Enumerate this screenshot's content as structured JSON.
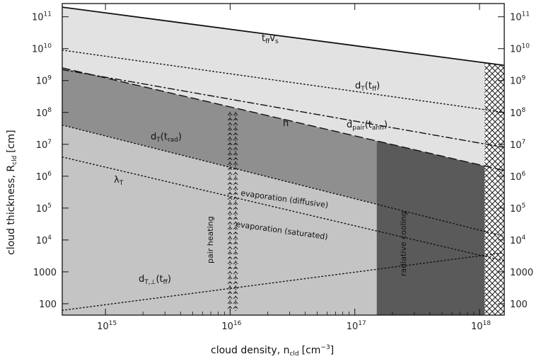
{
  "chart_data": {
    "type": "area",
    "xlabel": "cloud density, n",
    "xlabel_sub": "cld",
    "xlabel_unit": "[cm",
    "xlabel_unit_sup": "−3",
    "xlabel_unit_close": "]",
    "ylabel": "cloud thickness, R",
    "ylabel_sub": "cld",
    "ylabel_unit": "[cm]",
    "x_scale": "log",
    "y_scale": "log",
    "xlim": [
      450000000000000.0,
      1.58e+18
    ],
    "ylim": [
      44,
      260000000000.0
    ],
    "x_ticks": [
      {
        "value": 1000000000000000.0,
        "mant": "10",
        "exp": "15"
      },
      {
        "value": 1e+16,
        "mant": "10",
        "exp": "16"
      },
      {
        "value": 1e+17,
        "mant": "10",
        "exp": "17"
      },
      {
        "value": 1e+18,
        "mant": "10",
        "exp": "18"
      }
    ],
    "y_ticks": [
      {
        "value": 100,
        "mant": "100",
        "exp": ""
      },
      {
        "value": 1000,
        "mant": "1000",
        "exp": ""
      },
      {
        "value": 10000.0,
        "mant": "10",
        "exp": "4"
      },
      {
        "value": 100000.0,
        "mant": "10",
        "exp": "5"
      },
      {
        "value": 1000000.0,
        "mant": "10",
        "exp": "6"
      },
      {
        "value": 10000000.0,
        "mant": "10",
        "exp": "7"
      },
      {
        "value": 100000000.0,
        "mant": "10",
        "exp": "8"
      },
      {
        "value": 1000000000.0,
        "mant": "10",
        "exp": "9"
      },
      {
        "value": 10000000000.0,
        "mant": "10",
        "exp": "10"
      },
      {
        "value": 100000000000.0,
        "mant": "10",
        "exp": "11"
      }
    ],
    "lines": [
      {
        "name": "t_ff v_s",
        "style": "solid",
        "x": [
          450000000000000.0,
          1.58e+18
        ],
        "y": [
          200000000000.0,
          3000000000.0
        ]
      },
      {
        "name": "d_T(t_ff)",
        "style": "dotted",
        "x": [
          450000000000000.0,
          1.58e+18
        ],
        "y": [
          9000000000.0,
          100000000.0
        ]
      },
      {
        "name": "d_pair(t_ann)",
        "style": "dashdot",
        "x": [
          450000000000000.0,
          1.58e+18
        ],
        "y": [
          2200000000.0,
          8000000.0
        ]
      },
      {
        "name": "h",
        "style": "dashed",
        "x": [
          450000000000000.0,
          1.58e+18
        ],
        "y": [
          2500000000.0,
          1500000.0
        ]
      },
      {
        "name": "d_T(t_rad)",
        "style": "dotted",
        "x": [
          450000000000000.0,
          1.58e+18
        ],
        "y": [
          40000000.0,
          13000.0
        ]
      },
      {
        "name": "lambda_T",
        "style": "dotted",
        "x": [
          450000000000000.0,
          1.58e+18
        ],
        "y": [
          4000000.0,
          2200.0
        ]
      },
      {
        "name": "d_T,perp(t_ff)",
        "style": "dotted",
        "x": [
          450000000000000.0,
          1.58e+18
        ],
        "y": [
          62,
          4000.0
        ]
      }
    ],
    "regions": [
      {
        "name": "light-upper",
        "fill": "#e2e2e2"
      },
      {
        "name": "mid-grey",
        "fill": "#8f8f8f"
      },
      {
        "name": "lower-grey",
        "fill": "#c4c4c4"
      },
      {
        "name": "radiative-cooling",
        "fill": "#5a5a5a",
        "x_min": 1.5e+17,
        "x_max": 1.1e+18
      },
      {
        "name": "hatched",
        "x_min": 1.1e+18,
        "x_max": 1.58e+18
      }
    ],
    "pair_heating_x": 1.05e+16,
    "annotations": {
      "tff_vs": {
        "main": "t",
        "sub1": "ff",
        "main2": "v",
        "sub2": "s"
      },
      "dT_tff": {
        "main": "d",
        "sub1": "T",
        "rest": "(t",
        "sub2": "ff",
        "close": ")"
      },
      "h": "h",
      "dpair": {
        "main": "d",
        "sub1": "pair",
        "rest": "(t",
        "sub2": "ann",
        "close": ")"
      },
      "dT_trad": {
        "main": "d",
        "sub1": "T",
        "rest": "(t",
        "sub2": "rad",
        "close": ")"
      },
      "lambda": {
        "main": "λ",
        "sub1": "T"
      },
      "evap_diff": "evaporation (diffusive)",
      "evap_sat": "evaporation (saturated)",
      "pair_heating": "pair heating",
      "rad_cooling": "radiative cooling",
      "dTperp": {
        "main": "d",
        "sub1": "T,⊥",
        "rest": "(t",
        "sub2": "ff",
        "close": ")"
      }
    }
  }
}
